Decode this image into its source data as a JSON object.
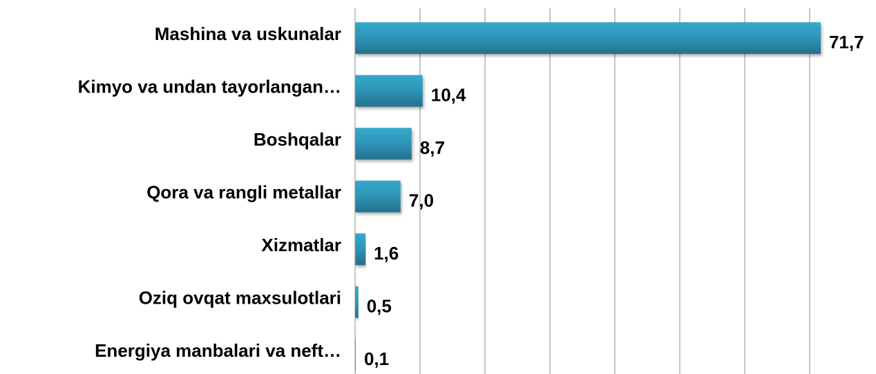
{
  "chart_data": {
    "type": "bar",
    "orientation": "horizontal",
    "categories": [
      "Mashina va uskunalar",
      "Kimyo va undan tayorlangan…",
      "Boshqalar",
      "Qora va rangli metallar",
      "Xizmatlar",
      "Oziq ovqat maxsulotlari",
      "Energiya manbalari va neft…"
    ],
    "values": [
      71.7,
      10.4,
      8.7,
      7.0,
      1.6,
      0.5,
      0.1
    ],
    "value_labels": [
      "71,7",
      "10,4",
      "8,7",
      "7,0",
      "1,6",
      "0,5",
      "0,1"
    ],
    "color": "#2e9bbd",
    "xlim": [
      0,
      80
    ],
    "xticks": [
      0,
      10,
      20,
      30,
      40,
      50,
      60,
      70
    ],
    "grid": true
  }
}
